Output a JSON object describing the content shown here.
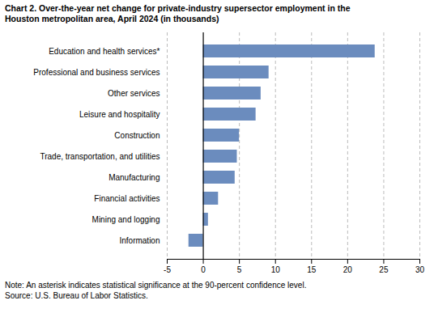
{
  "chart_data": {
    "type": "bar",
    "orientation": "horizontal",
    "title": "Chart 2. Over-the-year net change for private-industry supersector employment in the",
    "subtitle": "Houston metropolitan area, April 2024  (in thousands)",
    "categories": [
      "Information",
      "Mining and logging",
      "Financial activities",
      "Manufacturing",
      "Trade, transportation, and utilities",
      "Construction",
      "Leisure and hospitality",
      "Other services",
      "Professional and business services",
      "Education and health services*"
    ],
    "values": [
      -2.0,
      0.7,
      2.1,
      4.4,
      4.7,
      5.0,
      7.3,
      8.0,
      9.1,
      23.8
    ],
    "color": "#6b8cbe",
    "xlim": [
      -5,
      30
    ],
    "xticks": [
      -5,
      0,
      5,
      10,
      15,
      20,
      25,
      30
    ],
    "grid": true,
    "annotations": [
      "Note: An asterisk indicates statistical significance at the 90-percent confidence level.",
      "Source: U.S. Bureau of Labor Statistics."
    ]
  }
}
